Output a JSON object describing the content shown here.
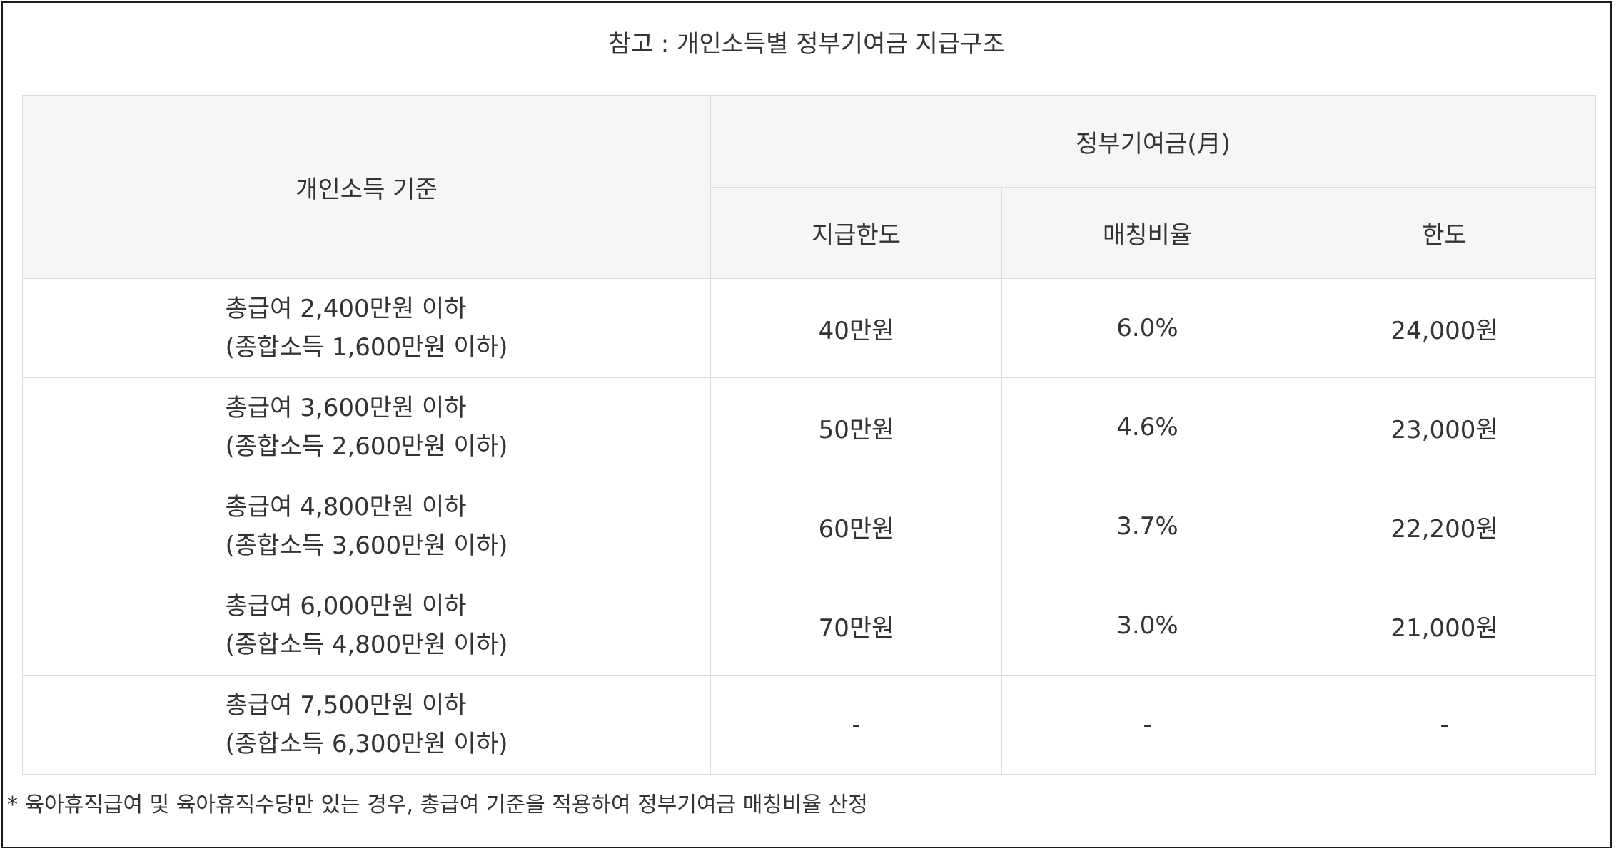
{
  "title": "참고 : 개인소득별 정부기여금 지급구조",
  "headers": {
    "criterion": "개인소득 기준",
    "contribution": "정부기여금(月)",
    "limit": "지급한도",
    "ratio": "매칭비율",
    "cap": "한도"
  },
  "rows": [
    {
      "line1": "총급여 2,400만원 이하",
      "line2": "(종합소득 1,600만원 이하)",
      "limit": "40만원",
      "ratio": "6.0%",
      "cap": "24,000원"
    },
    {
      "line1": "총급여 3,600만원 이하",
      "line2": "(종합소득 2,600만원 이하)",
      "limit": "50만원",
      "ratio": "4.6%",
      "cap": "23,000원"
    },
    {
      "line1": "총급여 4,800만원 이하",
      "line2": "(종합소득 3,600만원 이하)",
      "limit": "60만원",
      "ratio": "3.7%",
      "cap": "22,200원"
    },
    {
      "line1": "총급여 6,000만원 이하",
      "line2": "(종합소득 4,800만원 이하)",
      "limit": "70만원",
      "ratio": "3.0%",
      "cap": "21,000원"
    },
    {
      "line1": "총급여 7,500만원 이하",
      "line2": "(종합소득 6,300만원 이하)",
      "limit": "-",
      "ratio": "-",
      "cap": "-"
    }
  ],
  "footnote": "* 육아휴직급여 및 육아휴직수당만 있는 경우, 총급여 기준을 적용하여 정부기여금 매칭비율 산정"
}
